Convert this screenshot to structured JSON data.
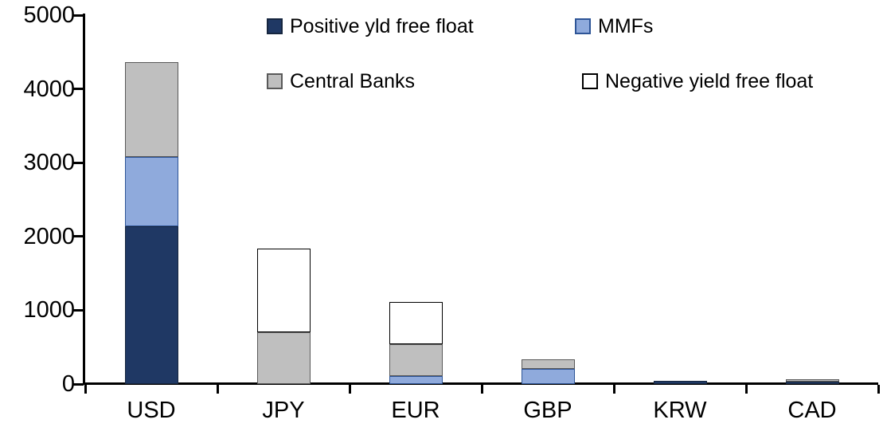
{
  "chart_data": {
    "type": "bar",
    "stacked": true,
    "title": "",
    "xlabel": "",
    "ylabel": "",
    "ylim": [
      0,
      5000
    ],
    "yticks": [
      0,
      1000,
      2000,
      3000,
      4000,
      5000
    ],
    "grid": false,
    "legend_position": "top",
    "categories": [
      "USD",
      "JPY",
      "EUR",
      "GBP",
      "KRW",
      "CAD"
    ],
    "series": [
      {
        "name": "Positive yld free float",
        "color": "#1F3864",
        "border": "#16263F",
        "values": [
          2140,
          0,
          0,
          0,
          40,
          30
        ]
      },
      {
        "name": "MMFs",
        "color": "#8FAADC",
        "border": "#2E5597",
        "values": [
          940,
          0,
          110,
          210,
          0,
          0
        ]
      },
      {
        "name": "Central Banks",
        "color": "#BFBFBF",
        "border": "#595959",
        "values": [
          1280,
          700,
          430,
          120,
          0,
          30
        ]
      },
      {
        "name": "Negative yield free float",
        "color": "#FFFFFF",
        "border": "#000000",
        "values": [
          0,
          1140,
          570,
          0,
          0,
          0
        ]
      }
    ],
    "totals": [
      4360,
      1840,
      1110,
      330,
      40,
      60
    ]
  },
  "axis_color": "#000000"
}
